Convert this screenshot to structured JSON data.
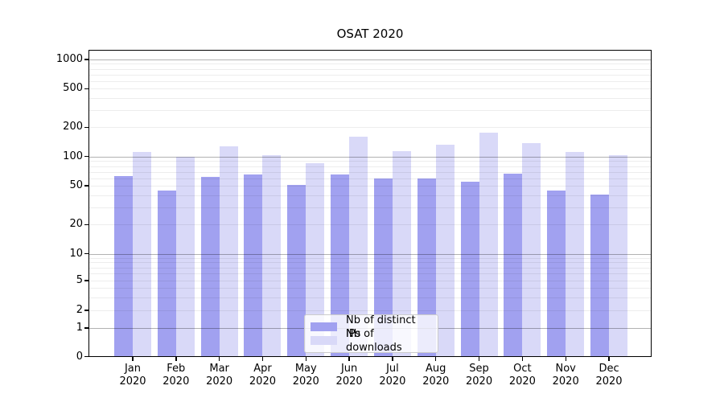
{
  "chart": {
    "title": "OSAT 2020",
    "legend": [
      {
        "label": "Nb of distinct IPs",
        "color": "#a1a1f0"
      },
      {
        "label": "Nb of downloads",
        "color": "#d9d9f8"
      }
    ]
  },
  "chart_data": {
    "type": "bar",
    "title": "OSAT 2020",
    "categories": [
      "Jan 2020",
      "Feb 2020",
      "Mar 2020",
      "Apr 2020",
      "May 2020",
      "Jun 2020",
      "Jul 2020",
      "Aug 2020",
      "Sep 2020",
      "Oct 2020",
      "Nov 2020",
      "Dec 2020"
    ],
    "series": [
      {
        "name": "Nb of distinct IPs",
        "color": "#a1a1f0",
        "values": [
          63,
          45,
          62,
          66,
          51,
          66,
          59,
          60,
          55,
          67,
          45,
          41
        ]
      },
      {
        "name": "Nb of downloads",
        "color": "#d9d9f8",
        "values": [
          111,
          100,
          127,
          103,
          86,
          160,
          114,
          133,
          175,
          138,
          112,
          104
        ]
      }
    ],
    "xlabel": "",
    "ylabel": "",
    "yscale": "symlog",
    "yticks": [
      0,
      1,
      2,
      5,
      10,
      20,
      50,
      100,
      200,
      500,
      1000
    ],
    "ylim": [
      0,
      1250
    ],
    "grid": "horizontal, major and minor",
    "legend_position": "lower center inside plot"
  }
}
